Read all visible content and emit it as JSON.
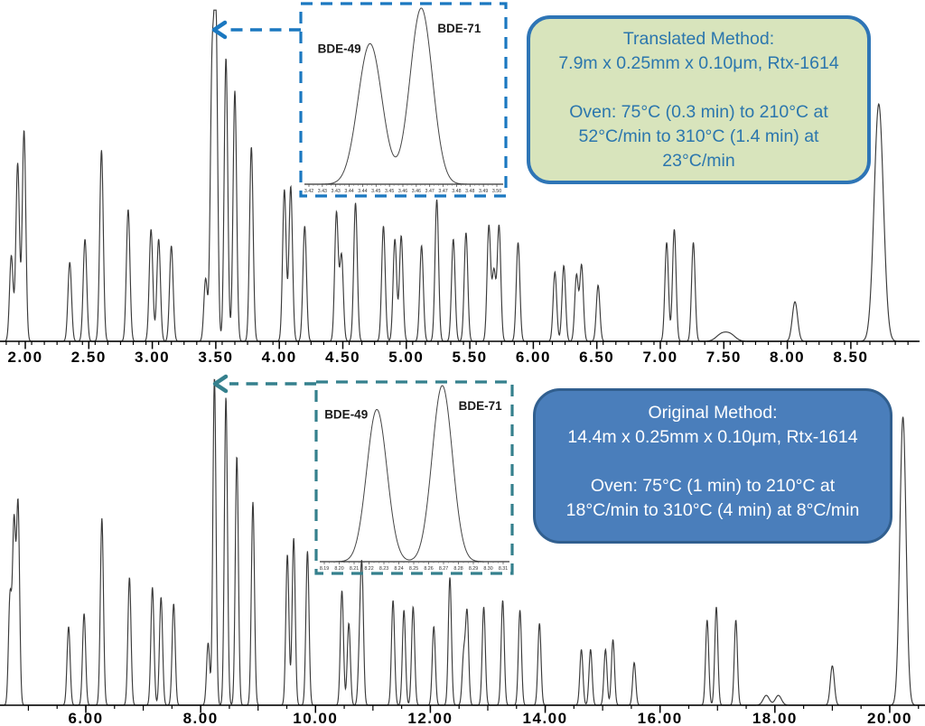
{
  "figure": {
    "description": "Comparison of translated vs original GC method chromatograms for brominated diphenyl ethers (Rtx-1614 column), each with a zoom inset of the BDE-49 / BDE-71 pair"
  },
  "colors": {
    "axis": "#000000",
    "trace": "#3a3a3a",
    "translated_accent": "#1b78c0",
    "original_accent": "#35808d",
    "green_box_fill": "#d8e4bc",
    "green_box_border": "#2e75b6",
    "green_box_text": "#2b76ad",
    "blue_box_fill": "#4a7ebb",
    "blue_box_border": "#315f8f",
    "blue_box_text": "#ffffff"
  },
  "chart_data": [
    {
      "type": "line",
      "name": "translated-method-chromatogram",
      "accent_color": "#1b78c0",
      "trace_color": "#3a3a3a",
      "x_range": [
        1.85,
        8.95
      ],
      "x_tick_labels": [
        "2.00",
        "2.50",
        "3.00",
        "3.50",
        "4.00",
        "4.50",
        "5.00",
        "5.50",
        "6.00",
        "6.50",
        "7.00",
        "7.50",
        "8.00",
        "8.50"
      ],
      "x_tick_values": [
        2.0,
        2.5,
        3.0,
        3.5,
        4.0,
        4.5,
        5.0,
        5.5,
        6.0,
        6.5,
        7.0,
        7.5,
        8.0,
        8.5
      ],
      "x_minor_step": 0.1,
      "peak_sigma_min": 0.014,
      "peaks": [
        [
          1.89,
          0.26
        ],
        [
          1.94,
          0.54
        ],
        [
          1.99,
          0.64
        ],
        [
          2.35,
          0.24
        ],
        [
          2.47,
          0.31
        ],
        [
          2.6,
          0.58
        ],
        [
          2.81,
          0.4
        ],
        [
          2.99,
          0.34
        ],
        [
          3.05,
          0.31
        ],
        [
          3.15,
          0.29
        ],
        [
          3.42,
          0.19
        ],
        [
          3.47,
          0.79
        ],
        [
          3.5,
          1.0
        ],
        [
          3.58,
          0.86
        ],
        [
          3.65,
          0.76
        ],
        [
          3.78,
          0.59
        ],
        [
          4.04,
          0.46
        ],
        [
          4.09,
          0.47
        ],
        [
          4.2,
          0.35
        ],
        [
          4.45,
          0.39
        ],
        [
          4.49,
          0.26
        ],
        [
          4.6,
          0.42
        ],
        [
          4.82,
          0.35
        ],
        [
          4.91,
          0.31
        ],
        [
          4.96,
          0.32
        ],
        [
          5.12,
          0.29
        ],
        [
          5.24,
          0.43
        ],
        [
          5.37,
          0.31
        ],
        [
          5.47,
          0.33
        ],
        [
          5.65,
          0.35
        ],
        [
          5.69,
          0.21
        ],
        [
          5.73,
          0.35
        ],
        [
          5.88,
          0.3
        ],
        [
          6.17,
          0.21
        ],
        [
          6.24,
          0.23
        ],
        [
          6.34,
          0.2
        ],
        [
          6.38,
          0.23
        ],
        [
          6.51,
          0.17
        ],
        [
          7.05,
          0.3
        ],
        [
          7.11,
          0.34
        ],
        [
          7.26,
          0.3
        ],
        [
          7.48,
          0.02,
          3
        ],
        [
          7.55,
          0.02,
          3
        ],
        [
          8.06,
          0.12,
          1.5
        ],
        [
          8.72,
          0.72,
          2.6
        ]
      ],
      "inset": {
        "peak_labels": [
          "BDE-49",
          "BDE-71"
        ],
        "axis_labels": [
          "3.42",
          "3.43",
          "3.43",
          "3.44",
          "3.44",
          "3.45",
          "3.45",
          "3.46",
          "3.46",
          "3.47",
          "3.47",
          "3.48",
          "3.48",
          "3.49",
          "3.50"
        ],
        "peaks": [
          {
            "center": 0.33,
            "height": 0.79,
            "sigma": 0.062
          },
          {
            "center": 0.595,
            "height": 0.99,
            "sigma": 0.058
          }
        ]
      },
      "callout": {
        "lines": [
          "Translated Method:",
          "7.9m x 0.25mm x 0.10μm, Rtx-1614",
          "",
          "Oven: 75°C (0.3 min) to 210°C at",
          "52°C/min to 310°C (1.4 min) at",
          "23°C/min"
        ]
      }
    },
    {
      "type": "line",
      "name": "original-method-chromatogram",
      "accent_color": "#35808d",
      "trace_color": "#3a3a3a",
      "x_range": [
        4.5,
        20.6
      ],
      "x_tick_labels": [
        "6.00",
        "8.00",
        "10.00",
        "12.00",
        "14.00",
        "16.00",
        "18.00",
        "20.00"
      ],
      "x_tick_values": [
        6,
        8,
        10,
        12,
        14,
        16,
        18,
        20
      ],
      "x_minor_step": 0.5,
      "peak_sigma_min": 0.027,
      "peaks": [
        [
          4.68,
          0.33
        ],
        [
          4.75,
          0.55
        ],
        [
          4.82,
          0.61
        ],
        [
          5.7,
          0.24
        ],
        [
          5.97,
          0.28
        ],
        [
          6.28,
          0.57
        ],
        [
          6.76,
          0.39
        ],
        [
          7.16,
          0.36
        ],
        [
          7.31,
          0.33
        ],
        [
          7.53,
          0.31
        ],
        [
          8.13,
          0.19
        ],
        [
          8.24,
          1.0
        ],
        [
          8.44,
          0.94
        ],
        [
          8.63,
          0.76
        ],
        [
          8.91,
          0.62
        ],
        [
          9.51,
          0.46
        ],
        [
          9.62,
          0.51
        ],
        [
          9.86,
          0.47
        ],
        [
          10.46,
          0.35
        ],
        [
          10.58,
          0.25
        ],
        [
          10.77,
          0.16
        ],
        [
          10.81,
          0.38
        ],
        [
          11.35,
          0.32
        ],
        [
          11.54,
          0.29
        ],
        [
          11.7,
          0.3
        ],
        [
          12.06,
          0.24
        ],
        [
          12.34,
          0.39
        ],
        [
          12.58,
          0.15
        ],
        [
          12.64,
          0.28
        ],
        [
          12.93,
          0.3
        ],
        [
          13.26,
          0.32
        ],
        [
          13.56,
          0.29
        ],
        [
          13.9,
          0.25
        ],
        [
          14.63,
          0.17
        ],
        [
          14.79,
          0.17
        ],
        [
          15.05,
          0.17
        ],
        [
          15.18,
          0.2
        ],
        [
          15.55,
          0.13
        ],
        [
          16.82,
          0.26
        ],
        [
          16.98,
          0.3
        ],
        [
          17.32,
          0.26
        ],
        [
          17.85,
          0.03,
          2
        ],
        [
          18.06,
          0.03,
          2
        ],
        [
          19.0,
          0.12,
          1.3
        ],
        [
          20.23,
          0.88,
          2.0
        ]
      ],
      "inset": {
        "peak_labels": [
          "BDE-49",
          "BDE-71"
        ],
        "axis_labels": [
          "8.19",
          "8.20",
          "8.21",
          "8.22",
          "8.23",
          "8.24",
          "8.25",
          "8.26",
          "8.27",
          "8.28",
          "8.29",
          "8.30",
          "8.31"
        ],
        "peaks": [
          {
            "center": 0.3,
            "height": 0.86,
            "sigma": 0.055
          },
          {
            "center": 0.655,
            "height": 0.995,
            "sigma": 0.055
          }
        ]
      },
      "callout": {
        "lines": [
          "Original Method:",
          "14.4m x 0.25mm x 0.10μm, Rtx-1614",
          "",
          "Oven: 75°C (1 min) to 210°C at",
          "18°C/min to 310°C (4 min) at 8°C/min"
        ]
      }
    }
  ]
}
